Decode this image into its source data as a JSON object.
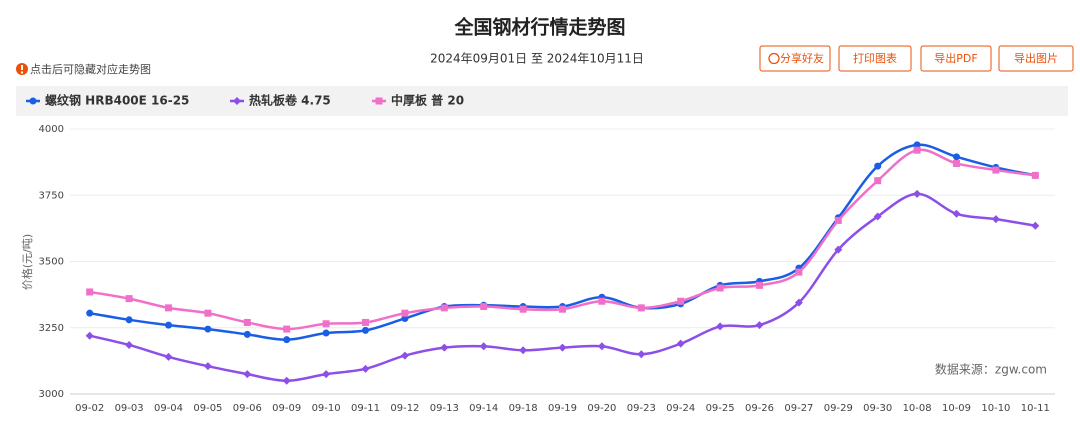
{
  "chart_data": {
    "type": "line",
    "title": "全国钢材行情走势图",
    "subtitle": "2024年09月01日 至 2024年10月11日",
    "buttons": [
      "分享好友",
      "打印图表",
      "导出PDF",
      "导出图片"
    ],
    "hint": "点击后可隐藏对应走势图",
    "y_label": "价格(元/吨)",
    "source": "数据来源：zgw.com",
    "categories": [
      "09-02",
      "09-03",
      "09-04",
      "09-05",
      "09-06",
      "09-09",
      "09-10",
      "09-11",
      "09-12",
      "09-13",
      "09-14",
      "09-18",
      "09-19",
      "09-20",
      "09-23",
      "09-24",
      "09-25",
      "09-26",
      "09-27",
      "09-29",
      "09-30",
      "10-08",
      "10-09",
      "10-10",
      "10-11"
    ],
    "series": [
      {
        "name": "螺纹钢 HRB400E 16-25",
        "color": "#1a5ee6",
        "marker": "circle",
        "values": [
          3305,
          3280,
          3260,
          3245,
          3225,
          3205,
          3230,
          3240,
          3285,
          3330,
          3335,
          3330,
          3330,
          3365,
          3325,
          3340,
          3410,
          3425,
          3475,
          3665,
          3860,
          3940,
          3895,
          3855,
          3825
        ]
      },
      {
        "name": "热轧板卷 4.75",
        "color": "#8e4fe8",
        "marker": "diamond",
        "values": [
          3220,
          3185,
          3140,
          3105,
          3075,
          3050,
          3075,
          3095,
          3145,
          3175,
          3180,
          3165,
          3175,
          3180,
          3150,
          3190,
          3255,
          3260,
          3345,
          3545,
          3670,
          3755,
          3680,
          3660,
          3635
        ]
      },
      {
        "name": "中厚板 普 20",
        "color": "#f06fc8",
        "marker": "square",
        "values": [
          3385,
          3360,
          3325,
          3305,
          3270,
          3245,
          3265,
          3270,
          3305,
          3325,
          3330,
          3320,
          3320,
          3350,
          3325,
          3350,
          3400,
          3410,
          3460,
          3655,
          3805,
          3920,
          3870,
          3845,
          3825
        ]
      }
    ],
    "ylim": [
      3000,
      4000
    ],
    "yticks": [
      3000,
      3250,
      3500,
      3750,
      4000
    ],
    "grid": true
  }
}
